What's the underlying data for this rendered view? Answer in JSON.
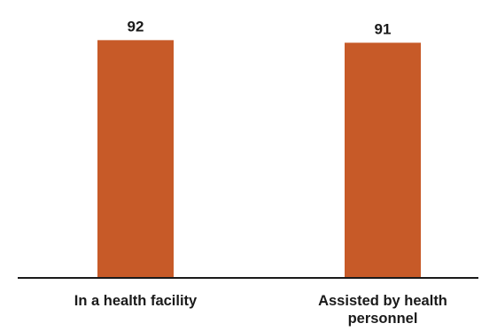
{
  "chart_data": {
    "type": "bar",
    "categories": [
      [
        "In a health facility"
      ],
      [
        "Assisted by health",
        "personnel"
      ]
    ],
    "values": [
      92,
      91
    ],
    "ylim": [
      0,
      100
    ],
    "grid": false,
    "legend": "none",
    "colors": {
      "bar": "#C75A28",
      "axis": "#1a1a1a",
      "text": "#1a1a1a"
    }
  }
}
